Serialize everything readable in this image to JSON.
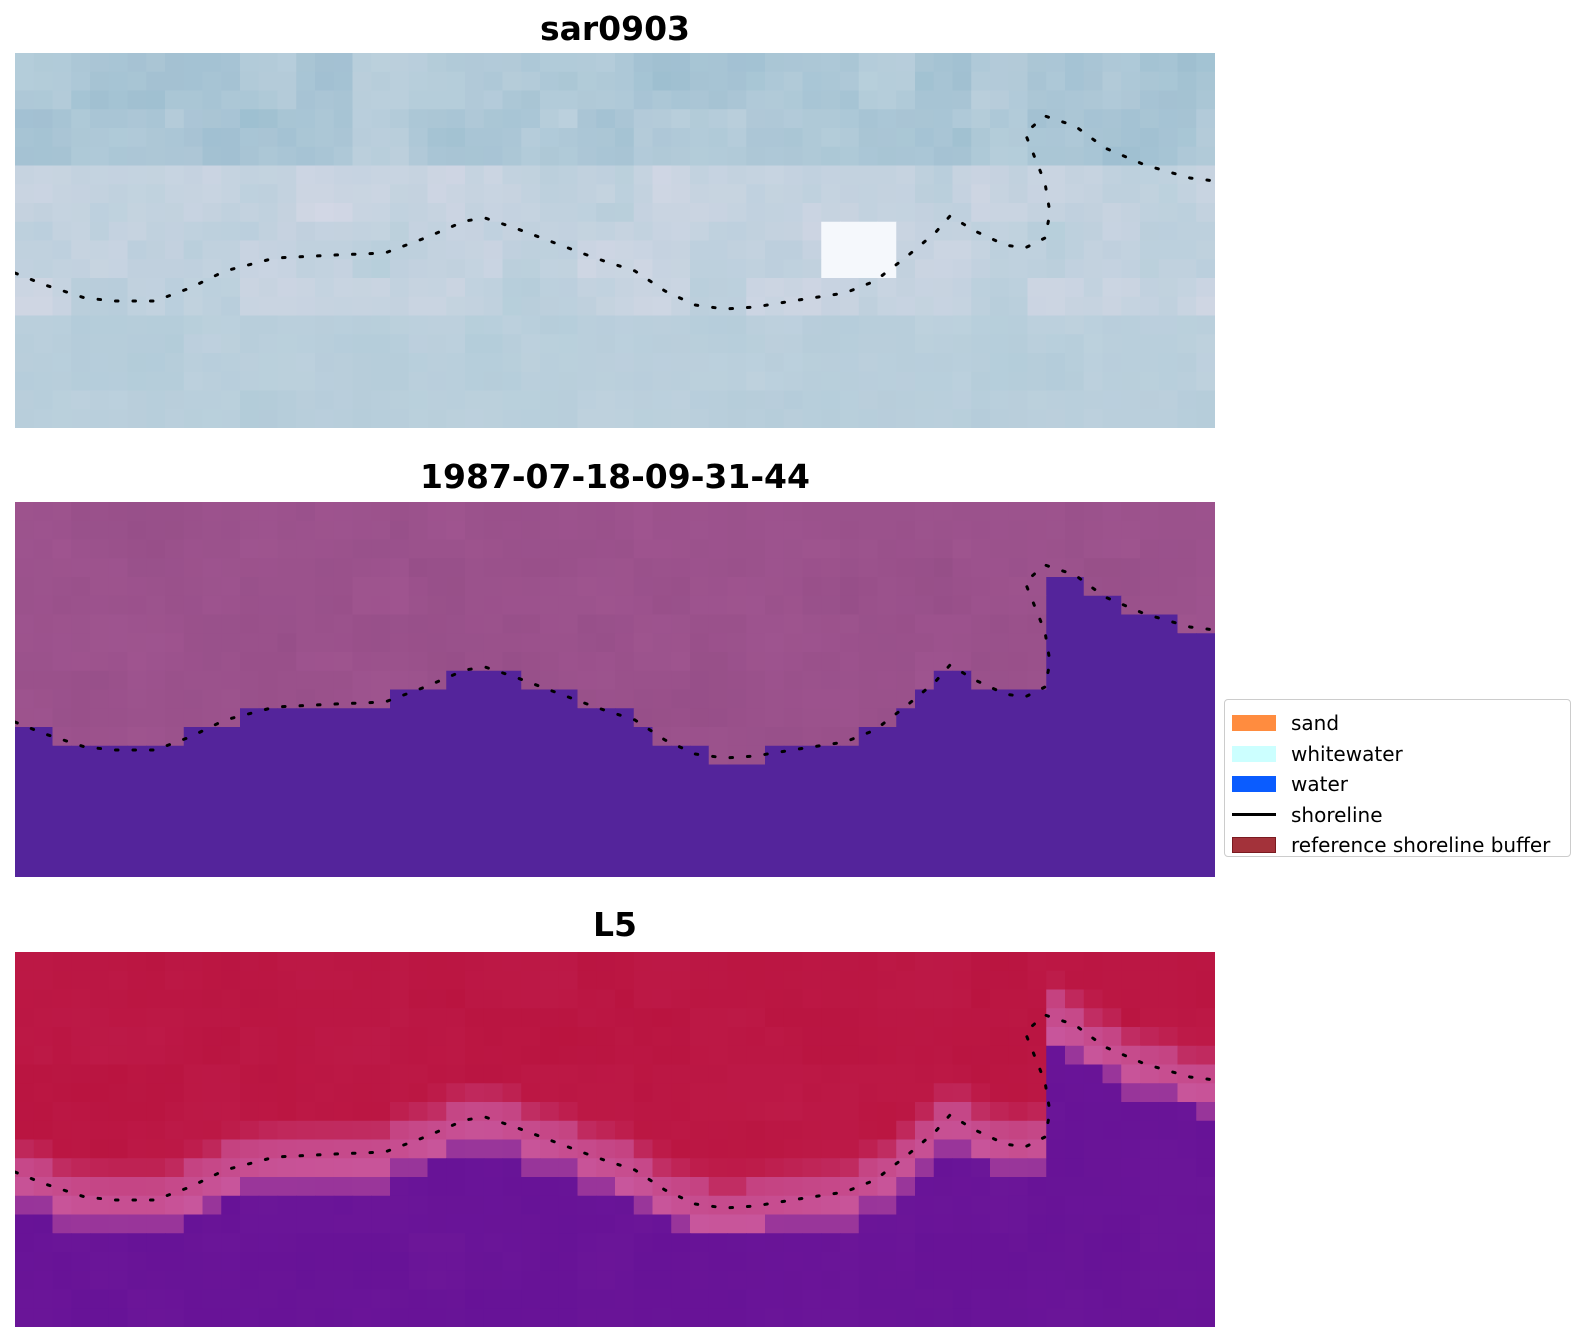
{
  "panels": [
    {
      "title": "sar0903",
      "style": "sar"
    },
    {
      "title": "1987-07-18-09-31-44",
      "style": "classified"
    },
    {
      "title": "L5",
      "style": "probability"
    }
  ],
  "legend": {
    "items": [
      {
        "label": "sand",
        "color": "#ff8c3f",
        "kind": "patch"
      },
      {
        "label": "whitewater",
        "color": "#ccffff",
        "kind": "patch"
      },
      {
        "label": "water",
        "color": "#0a5cff",
        "kind": "patch"
      },
      {
        "label": "shoreline",
        "color": "#000000",
        "kind": "line"
      },
      {
        "label": "reference shoreline buffer",
        "color": "#a3323a",
        "kind": "patch",
        "edge": "#7a1a20"
      }
    ]
  },
  "colors": {
    "sar_base": "#b9d0dc",
    "sar_dark": "#86b1c6",
    "sar_pink": "#e2dcea",
    "classified_land": "#a05590",
    "classified_water": "#54249b",
    "prob_land": "#bd1a48",
    "prob_water": "#6c1698",
    "prob_edge": "#c8569c",
    "shoreline_dots": "#000000"
  }
}
